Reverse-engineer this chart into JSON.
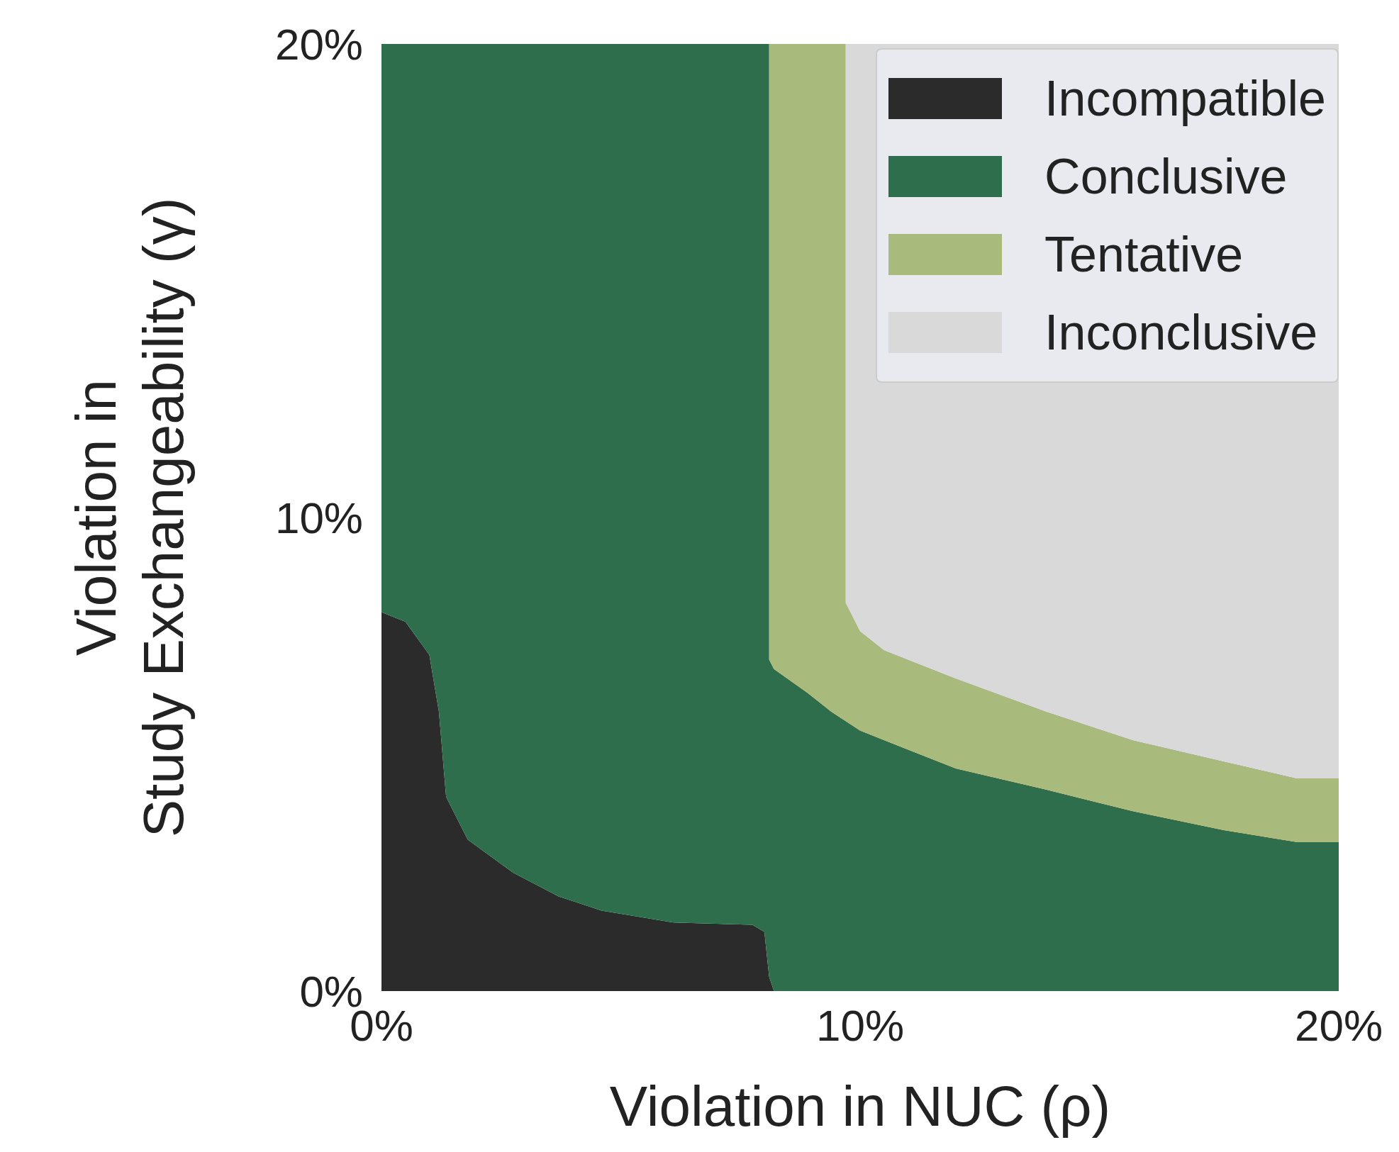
{
  "chart_data": {
    "type": "area",
    "stacked": true,
    "xlabel": "Violation in NUC (ρ)",
    "ylabel": "Violation in\nStudy Exchangeability (γ)",
    "x": [
      0,
      0.5,
      1.0,
      1.2,
      1.35,
      1.8,
      2.75,
      3.7,
      4.6,
      6.1,
      7.75,
      8.0,
      8.1,
      8.1,
      8.2,
      8.9,
      9.4,
      9.7,
      9.7,
      10.0,
      10.5,
      12.0,
      13.9,
      15.7,
      17.6,
      19.1,
      20
    ],
    "series": [
      {
        "name": "Incompatible",
        "color": "#2b2b2b",
        "values": [
          8.0,
          7.8,
          7.1,
          5.9,
          4.1,
          3.2,
          2.5,
          2.0,
          1.7,
          1.45,
          1.4,
          1.25,
          0.3,
          0.3,
          0,
          0,
          0,
          0,
          0,
          0,
          0,
          0,
          0,
          0,
          0,
          0,
          0
        ]
      },
      {
        "name": "Conclusive",
        "color": "#2f6e4c",
        "values": [
          12.0,
          12.2,
          12.9,
          14.1,
          15.9,
          16.8,
          17.5,
          18.0,
          18.3,
          18.55,
          18.6,
          18.75,
          19.7,
          6.7,
          6.8,
          6.3,
          5.9,
          5.7,
          5.7,
          5.5,
          5.3,
          4.7,
          4.25,
          3.8,
          3.4,
          3.15,
          3.15
        ]
      },
      {
        "name": "Tentative",
        "color": "#a9bb7c",
        "values": [
          0,
          0,
          0,
          0,
          0,
          0,
          0,
          0,
          0,
          0,
          0,
          0,
          0,
          13.0,
          13.2,
          13.7,
          14.1,
          14.3,
          2.5,
          2.1,
          1.9,
          1.9,
          1.65,
          1.5,
          1.45,
          1.35,
          1.35
        ]
      },
      {
        "name": "Inconclusive",
        "color": "#d9d9d9",
        "values": [
          0,
          0,
          0,
          0,
          0,
          0,
          0,
          0,
          0,
          0,
          0,
          0,
          0,
          0,
          0,
          0,
          0,
          0,
          11.8,
          12.4,
          12.8,
          13.4,
          14.1,
          14.7,
          15.15,
          15.5,
          15.5
        ]
      }
    ],
    "xlim": [
      0,
      20
    ],
    "ylim": [
      0,
      20
    ],
    "xticks": [
      {
        "value": 0,
        "label": "0%"
      },
      {
        "value": 10,
        "label": "10%"
      },
      {
        "value": 20,
        "label": "20%"
      }
    ],
    "yticks": [
      {
        "value": 0,
        "label": "0%"
      },
      {
        "value": 10,
        "label": "10%"
      },
      {
        "value": 20,
        "label": "20%"
      }
    ],
    "grid": false,
    "legend": "top right"
  }
}
